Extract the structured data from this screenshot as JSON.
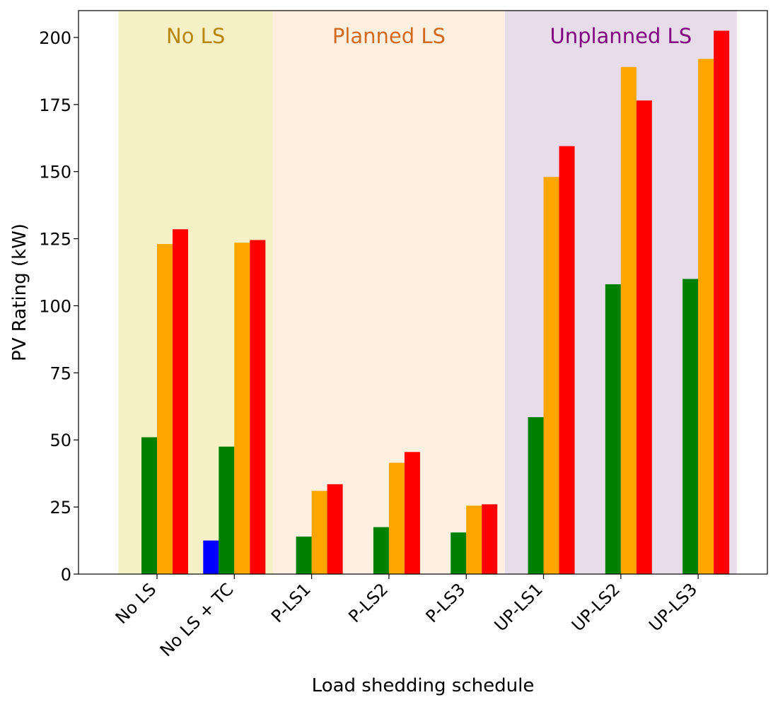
{
  "chart_data": {
    "type": "bar",
    "xlabel": "Load shedding schedule",
    "ylabel": "PV Rating (kW)",
    "ylim": [
      0,
      210
    ],
    "yticks": [
      0,
      25,
      50,
      75,
      100,
      125,
      150,
      175,
      200
    ],
    "categories": [
      "No LS",
      "No LS + TC",
      "P-LS1",
      "P-LS2",
      "P-LS3",
      "UP-LS1",
      "UP-LS2",
      "UP-LS3"
    ],
    "series": [
      {
        "color": "#0000ff",
        "values": [
          null,
          12.5,
          null,
          null,
          null,
          null,
          null,
          null
        ]
      },
      {
        "color": "#008000",
        "values": [
          51,
          47.5,
          14,
          17.5,
          15.5,
          58.5,
          108,
          110
        ]
      },
      {
        "color": "#ffa500",
        "values": [
          123,
          123.5,
          31,
          41.5,
          25.5,
          148,
          189,
          192
        ]
      },
      {
        "color": "#ff0000",
        "values": [
          128.5,
          124.5,
          33.5,
          45.5,
          26,
          159.5,
          176.5,
          202.5
        ]
      }
    ],
    "regions": [
      {
        "label": "No LS",
        "from": 0,
        "to": 1,
        "fill": "#f5f0c6",
        "text_color": "#b8860b"
      },
      {
        "label": "Planned LS",
        "from": 2,
        "to": 4,
        "fill": "#fdf0e1",
        "text_color": "#d2691e"
      },
      {
        "label": "Unplanned LS",
        "from": 5,
        "to": 7,
        "fill": "#e8dcea",
        "text_color": "#800080"
      }
    ]
  }
}
